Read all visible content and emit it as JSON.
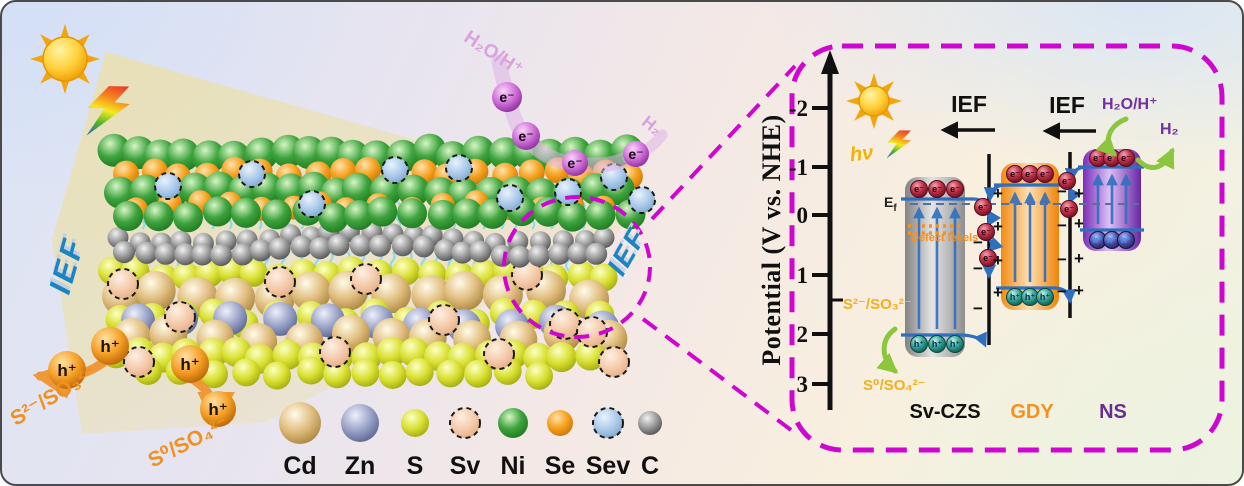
{
  "symbols": {
    "electron": "e⁻",
    "hole": "h⁺",
    "plus": "+",
    "minus": "−"
  },
  "left_scene": {
    "ief_left": "IEF",
    "ief_mid": "IEF",
    "h2o_label": "H₂O/H⁺",
    "h2_label": "H₂",
    "s2_so3_label": "S²⁻/SO₃²⁻",
    "s0_so4_label": "S⁰/SO₄²⁻",
    "legend": [
      {
        "symbol": "Cd",
        "color": "#d9b87c",
        "r": 21,
        "dashed": false,
        "grad": "g-cd"
      },
      {
        "symbol": "Zn",
        "color": "#8f97bd",
        "r": 19,
        "dashed": false,
        "grad": "g-zn"
      },
      {
        "symbol": "S",
        "color": "#dde23a",
        "r": 14,
        "dashed": false,
        "grad": "g-s"
      },
      {
        "symbol": "Sv",
        "color": "#f7cfb2",
        "r": 15,
        "dashed": true,
        "grad": "g-sv"
      },
      {
        "symbol": "Ni",
        "color": "#45b045",
        "r": 15,
        "dashed": false,
        "grad": "g-ni"
      },
      {
        "symbol": "Se",
        "color": "#f39c14",
        "r": 13,
        "dashed": false,
        "grad": "g-se"
      },
      {
        "symbol": "Sev",
        "color": "#a9c9e9",
        "r": 15,
        "dashed": true,
        "grad": "g-sev"
      },
      {
        "symbol": "C",
        "color": "#8f8f8f",
        "r": 12,
        "dashed": false,
        "grad": "g-c"
      }
    ]
  },
  "right_panel": {
    "axis_label": "Potential (V vs. NHE)",
    "ticks": [
      "-2",
      "-1",
      "0",
      "1",
      "2",
      "3"
    ],
    "hv_label": "hν",
    "ief_1": "IEF",
    "ief_2": "IEF",
    "h2o_label": "H₂O/H⁺",
    "h2_label": "H₂",
    "ef_main": "E",
    "ef_sub": "f",
    "defect_label": "Defect levels",
    "s2_so3_label": "S²⁻/SO₃²⁻",
    "s0_so4_label": "S⁰/SO₄²⁻",
    "materials": [
      {
        "name": "Sv-CZS",
        "label_color": "#101010"
      },
      {
        "name": "GDY",
        "label_color": "#f5921e"
      },
      {
        "name": "NS",
        "label_color": "#6a2d91"
      }
    ]
  },
  "colors": {
    "callout_magenta": "#cf06cf",
    "ief_blue": "#1a85c2",
    "band_line_blue": "#2f6fc0",
    "hole_arrow_orange": "#f0922b",
    "gold_label": "#f2b01e",
    "green_arrow": "#8cc63f",
    "purple_text": "#7030a0",
    "electron_purple": "#c06ac8",
    "electron_crimson": "#b52a42",
    "hole_teal": "#2f9e8e",
    "hole_navy": "#30347a"
  }
}
